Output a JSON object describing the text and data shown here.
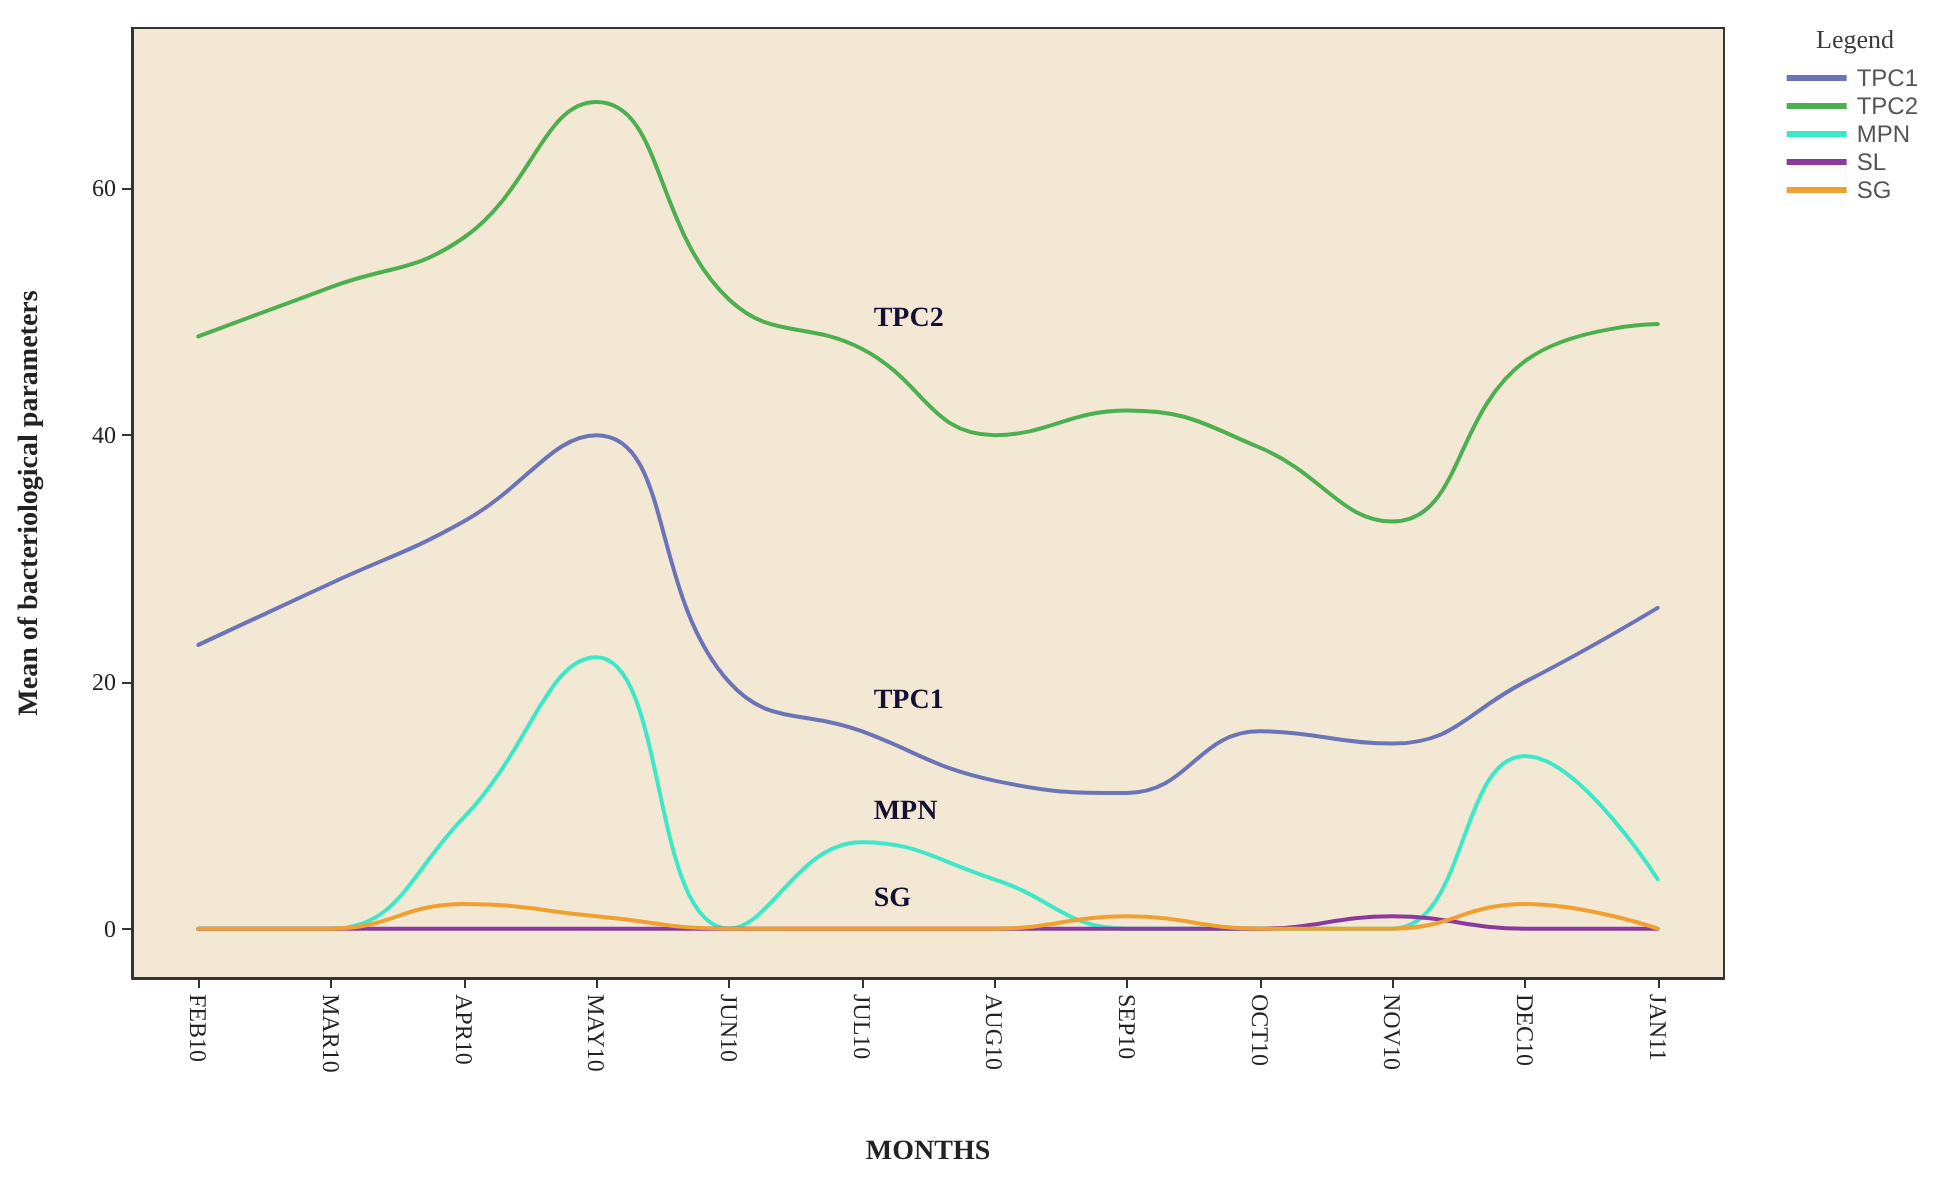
{
  "chart_data": {
    "type": "line",
    "xlabel": "MONTHS",
    "ylabel": "Mean of bacteriological parameters",
    "legend_title": "Legend",
    "categories": [
      "FEB10",
      "MAR10",
      "APR10",
      "MAY10",
      "JUN10",
      "JUL10",
      "AUG10",
      "SEP10",
      "OCT10",
      "NOV10",
      "DEC10",
      "JAN11"
    ],
    "series": [
      {
        "name": "TPC1",
        "color": "#6c74b8",
        "values": [
          23,
          28,
          33,
          40,
          20,
          16,
          12,
          11,
          16,
          15,
          20,
          26
        ]
      },
      {
        "name": "TPC2",
        "color": "#4caf50",
        "values": [
          48,
          52,
          56,
          67,
          51,
          47,
          40,
          42,
          39,
          33,
          46,
          49
        ]
      },
      {
        "name": "MPN",
        "color": "#3de8c8",
        "values": [
          0,
          0,
          9,
          22,
          0,
          7,
          4,
          0,
          0,
          0,
          14,
          4
        ]
      },
      {
        "name": "SL",
        "color": "#8a3a9c",
        "values": [
          0,
          0,
          0,
          0,
          0,
          0,
          0,
          0,
          0,
          1,
          0,
          0
        ]
      },
      {
        "name": "SG",
        "color": "#f0a030",
        "values": [
          0,
          0,
          2,
          1,
          0,
          0,
          0,
          1,
          0,
          0,
          2,
          0
        ]
      }
    ],
    "annotations": [
      {
        "text": "TPC2",
        "x": "JUL10",
        "y": 47
      },
      {
        "text": "TPC1",
        "x": "JUL10",
        "y": 16
      },
      {
        "text": "MPN",
        "x": "JUL10",
        "y": 7
      },
      {
        "text": "SG",
        "x": "JUL10",
        "y": 0
      }
    ],
    "ylim": [
      -4,
      73
    ],
    "yticks": [
      0,
      20,
      40,
      60
    ],
    "grid": false,
    "legend": "top right",
    "marker": "none",
    "line_style": "solid"
  }
}
